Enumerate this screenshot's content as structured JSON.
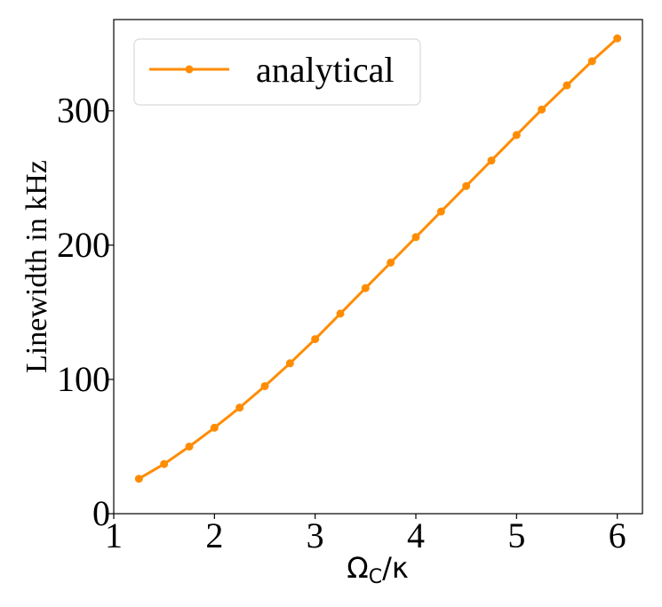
{
  "chart_data": {
    "type": "line",
    "title": "",
    "xlabel": "Ω_C/κ",
    "xlabel_main": "Ω",
    "xlabel_sub": "C",
    "xlabel_tail": "/κ",
    "ylabel": "Linewidth in kHz",
    "xlim": [
      1,
      6.25
    ],
    "ylim": [
      0,
      368
    ],
    "xticks": [
      1,
      2,
      3,
      4,
      5,
      6
    ],
    "yticks": [
      0,
      100,
      200,
      300
    ],
    "grid": false,
    "legend_position": "top-left",
    "series": [
      {
        "name": "analytical",
        "color": "#ff8c00",
        "marker": "circle",
        "x": [
          1.25,
          1.5,
          1.75,
          2.0,
          2.25,
          2.5,
          2.75,
          3.0,
          3.25,
          3.5,
          3.75,
          4.0,
          4.25,
          4.5,
          4.75,
          5.0,
          5.25,
          5.5,
          5.75,
          6.0
        ],
        "y": [
          26,
          37,
          50,
          64,
          79,
          95,
          112,
          130,
          149,
          168,
          187,
          206,
          225,
          244,
          263,
          282,
          301,
          319,
          337,
          354
        ]
      }
    ]
  }
}
